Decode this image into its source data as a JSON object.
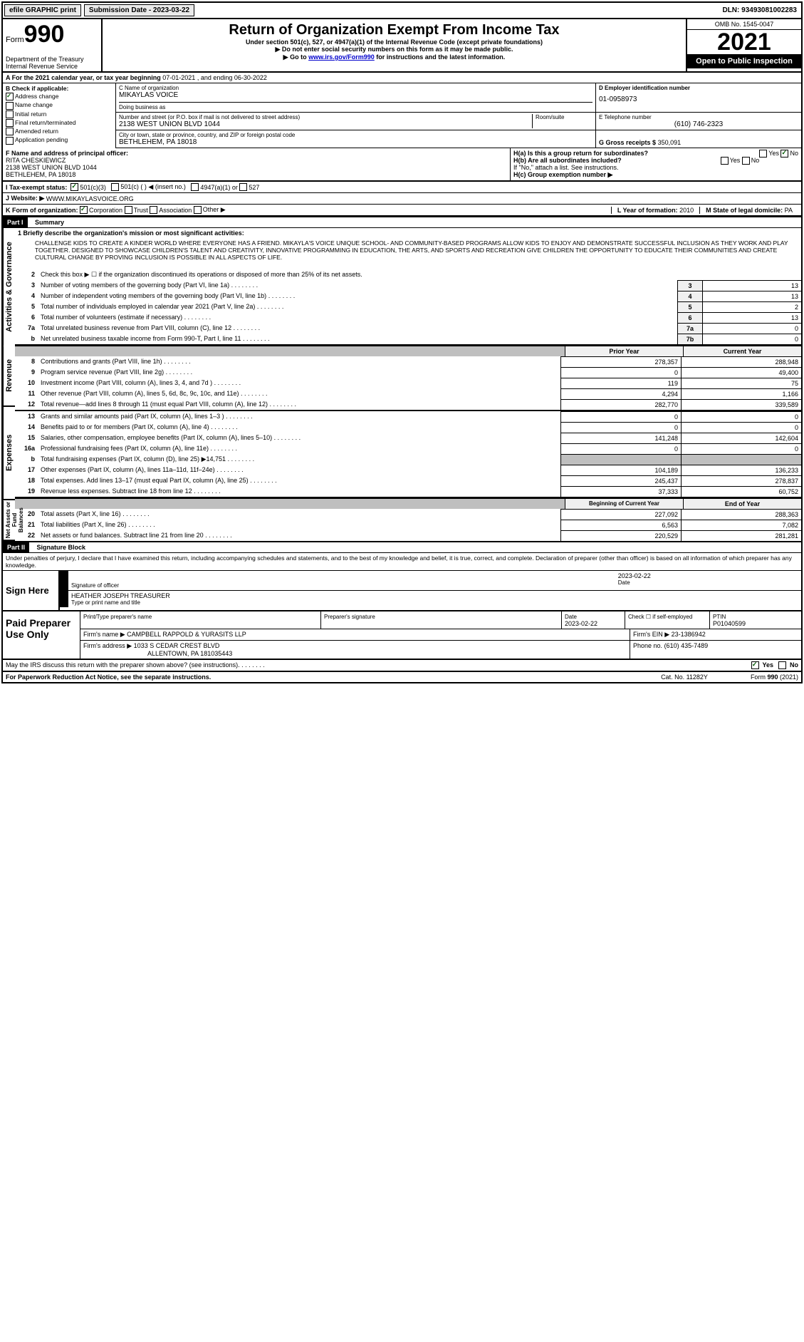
{
  "topbar": {
    "efile": "efile GRAPHIC print",
    "submission": "Submission Date - 2023-03-22",
    "dln": "DLN: 93493081002283"
  },
  "header": {
    "form_label": "Form",
    "form_number": "990",
    "dept": "Department of the Treasury Internal Revenue Service",
    "title": "Return of Organization Exempt From Income Tax",
    "subtitle1": "Under section 501(c), 527, or 4947(a)(1) of the Internal Revenue Code (except private foundations)",
    "subtitle2": "▶ Do not enter social security numbers on this form as it may be made public.",
    "subtitle3_prefix": "▶ Go to ",
    "subtitle3_link": "www.irs.gov/Form990",
    "subtitle3_suffix": " for instructions and the latest information.",
    "omb": "OMB No. 1545-0047",
    "year": "2021",
    "open": "Open to Public Inspection"
  },
  "rowA": {
    "text_prefix": "A For the 2021 calendar year, or tax year beginning ",
    "begin": "07-01-2021",
    "mid": " , and ending ",
    "end": "06-30-2022"
  },
  "colB": {
    "label": "B Check if applicable:",
    "addr": "Address change",
    "name": "Name change",
    "initial": "Initial return",
    "final": "Final return/terminated",
    "amended": "Amended return",
    "app": "Application pending"
  },
  "colC": {
    "name_label": "C Name of organization",
    "name": "MIKAYLAS VOICE",
    "dba_label": "Doing business as",
    "dba": "",
    "street_label": "Number and street (or P.O. box if mail is not delivered to street address)",
    "room_label": "Room/suite",
    "street": "2138 WEST UNION BLVD 1044",
    "city_label": "City or town, state or province, country, and ZIP or foreign postal code",
    "city": "BETHLEHEM, PA  18018"
  },
  "colD": {
    "ein_label": "D Employer identification number",
    "ein": "01-0958973",
    "phone_label": "E Telephone number",
    "phone": "(610) 746-2323",
    "gross_label": "G Gross receipts $",
    "gross": "350,091"
  },
  "rowF": {
    "label": "F  Name and address of principal officer:",
    "name": "RITA CHESKIEWICZ",
    "addr1": "2138 WEST UNION BLVD 1044",
    "addr2": "BETHLEHEM, PA  18018"
  },
  "rowH": {
    "ha": "H(a)  Is this a group return for subordinates?",
    "hb": "H(b)  Are all subordinates included?",
    "hb_note": "If \"No,\" attach a list. See instructions.",
    "hc": "H(c)  Group exemption number ▶",
    "yes": "Yes",
    "no": "No"
  },
  "rowI": {
    "label": "I   Tax-exempt status:",
    "c3": "501(c)(3)",
    "c": "501(c) (   ) ◀ (insert no.)",
    "a1": "4947(a)(1) or",
    "s527": "527"
  },
  "rowJ": {
    "label": "J   Website: ▶",
    "val": "WWW.MIKAYLASVOICE.ORG"
  },
  "rowK": {
    "label": "K Form of organization:",
    "corp": "Corporation",
    "trust": "Trust",
    "assoc": "Association",
    "other": "Other ▶",
    "l_label": "L Year of formation:",
    "l_val": "2010",
    "m_label": "M State of legal domicile:",
    "m_val": "PA"
  },
  "part1": {
    "header": "Part I",
    "title": "Summary",
    "line1_label": "1   Briefly describe the organization's mission or most significant activities:",
    "mission": "CHALLENGE KIDS TO CREATE A KINDER WORLD WHERE EVERYONE HAS A FRIEND. MIKAYLA'S VOICE UNIQUE SCHOOL- AND COMMUNITY-BASED PROGRAMS ALLOW KIDS TO ENJOY AND DEMONSTRATE SUCCESSFUL INCLUSION AS THEY WORK AND PLAY TOGETHER. DESIGNED TO SHOWCASE CHILDREN'S TALENT AND CREATIVITY, INNOVATIVE PROGRAMMING IN EDUCATION, THE ARTS, AND SPORTS AND RECREATION GIVE CHILDREN THE OPPORTUNITY TO EDUCATE THEIR COMMUNITIES AND CREATE CULTURAL CHANGE BY PROVING INCLUSION IS POSSIBLE IN ALL ASPECTS OF LIFE.",
    "line2": "Check this box ▶ ☐ if the organization discontinued its operations or disposed of more than 25% of its net assets.",
    "lines_single": [
      {
        "n": "3",
        "t": "Number of voting members of the governing body (Part VI, line 1a)",
        "box": "3",
        "v": "13"
      },
      {
        "n": "4",
        "t": "Number of independent voting members of the governing body (Part VI, line 1b)",
        "box": "4",
        "v": "13"
      },
      {
        "n": "5",
        "t": "Total number of individuals employed in calendar year 2021 (Part V, line 2a)",
        "box": "5",
        "v": "2"
      },
      {
        "n": "6",
        "t": "Total number of volunteers (estimate if necessary)",
        "box": "6",
        "v": "13"
      },
      {
        "n": "7a",
        "t": "Total unrelated business revenue from Part VIII, column (C), line 12",
        "box": "7a",
        "v": "0"
      },
      {
        "n": "b",
        "t": "Net unrelated business taxable income from Form 990-T, Part I, line 11",
        "box": "7b",
        "v": "0"
      }
    ],
    "prior_header": "Prior Year",
    "current_header": "Current Year",
    "revenue": [
      {
        "n": "8",
        "t": "Contributions and grants (Part VIII, line 1h)",
        "a": "278,357",
        "b": "288,948"
      },
      {
        "n": "9",
        "t": "Program service revenue (Part VIII, line 2g)",
        "a": "0",
        "b": "49,400"
      },
      {
        "n": "10",
        "t": "Investment income (Part VIII, column (A), lines 3, 4, and 7d )",
        "a": "119",
        "b": "75"
      },
      {
        "n": "11",
        "t": "Other revenue (Part VIII, column (A), lines 5, 6d, 8c, 9c, 10c, and 11e)",
        "a": "4,294",
        "b": "1,166"
      },
      {
        "n": "12",
        "t": "Total revenue—add lines 8 through 11 (must equal Part VIII, column (A), line 12)",
        "a": "282,770",
        "b": "339,589"
      }
    ],
    "expenses": [
      {
        "n": "13",
        "t": "Grants and similar amounts paid (Part IX, column (A), lines 1–3 )",
        "a": "0",
        "b": "0"
      },
      {
        "n": "14",
        "t": "Benefits paid to or for members (Part IX, column (A), line 4)",
        "a": "0",
        "b": "0"
      },
      {
        "n": "15",
        "t": "Salaries, other compensation, employee benefits (Part IX, column (A), lines 5–10)",
        "a": "141,248",
        "b": "142,604"
      },
      {
        "n": "16a",
        "t": "Professional fundraising fees (Part IX, column (A), line 11e)",
        "a": "0",
        "b": "0"
      },
      {
        "n": "b",
        "t": "Total fundraising expenses (Part IX, column (D), line 25) ▶14,751",
        "a": "gray",
        "b": "gray"
      },
      {
        "n": "17",
        "t": "Other expenses (Part IX, column (A), lines 11a–11d, 11f–24e)",
        "a": "104,189",
        "b": "136,233"
      },
      {
        "n": "18",
        "t": "Total expenses. Add lines 13–17 (must equal Part IX, column (A), line 25)",
        "a": "245,437",
        "b": "278,837"
      },
      {
        "n": "19",
        "t": "Revenue less expenses. Subtract line 18 from line 12",
        "a": "37,333",
        "b": "60,752"
      }
    ],
    "begin_header": "Beginning of Current Year",
    "end_header": "End of Year",
    "netassets": [
      {
        "n": "20",
        "t": "Total assets (Part X, line 16)",
        "a": "227,092",
        "b": "288,363"
      },
      {
        "n": "21",
        "t": "Total liabilities (Part X, line 26)",
        "a": "6,563",
        "b": "7,082"
      },
      {
        "n": "22",
        "t": "Net assets or fund balances. Subtract line 21 from line 20",
        "a": "220,529",
        "b": "281,281"
      }
    ],
    "vert": {
      "gov": "Activities & Governance",
      "rev": "Revenue",
      "exp": "Expenses",
      "net": "Net Assets or Fund Balances"
    }
  },
  "part2": {
    "header": "Part II",
    "title": "Signature Block",
    "penalties": "Under penalties of perjury, I declare that I have examined this return, including accompanying schedules and statements, and to the best of my knowledge and belief, it is true, correct, and complete. Declaration of preparer (other than officer) is based on all information of which preparer has any knowledge.",
    "sign_here": "Sign Here",
    "sig_officer": "Signature of officer",
    "sig_date_label": "Date",
    "sig_date": "2023-02-22",
    "sig_name": "HEATHER JOSEPH  TREASURER",
    "sig_name_label": "Type or print name and title",
    "paid": "Paid Preparer Use Only",
    "prep_name_label": "Print/Type preparer's name",
    "prep_sig_label": "Preparer's signature",
    "prep_date_label": "Date",
    "prep_date": "2023-02-22",
    "prep_self": "Check ☐ if self-employed",
    "ptin_label": "PTIN",
    "ptin": "P01040599",
    "firm_name_label": "Firm's name   ▶",
    "firm_name": "CAMPBELL RAPPOLD & YURASITS LLP",
    "firm_ein_label": "Firm's EIN ▶",
    "firm_ein": "23-1386942",
    "firm_addr_label": "Firm's address ▶",
    "firm_addr1": "1033 S CEDAR CREST BLVD",
    "firm_addr2": "ALLENTOWN, PA  181035443",
    "phone_label": "Phone no.",
    "phone": "(610) 435-7489",
    "discuss": "May the IRS discuss this return with the preparer shown above? (see instructions)",
    "yes": "Yes",
    "no": "No"
  },
  "footer": {
    "pra": "For Paperwork Reduction Act Notice, see the separate instructions.",
    "cat": "Cat. No. 11282Y",
    "form": "Form 990 (2021)"
  }
}
